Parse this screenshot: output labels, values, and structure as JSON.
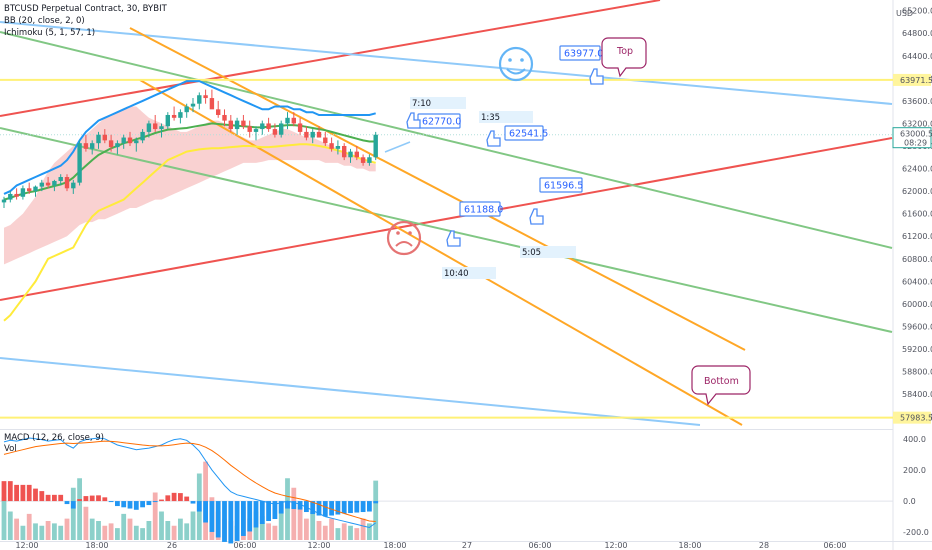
{
  "header": {
    "symbol_line": "BTCUSD Perpetual Contract, 30, BYBIT",
    "indicators": [
      "BB (20, close, 2, 0)",
      "Ichimoku (5, 1, 57, 1)"
    ],
    "sub_indicators": [
      "MACD (12, 26, close, 9)",
      "Vol"
    ]
  },
  "price_axis": {
    "currency": "USD",
    "current_price": "63000.5",
    "countdown": "08:29",
    "labels": [
      "65200.0",
      "64800.0",
      "64400.0",
      "64000.0",
      "63600.0",
      "63200.0",
      "62800.0",
      "62400.0",
      "62000.0",
      "61600.0",
      "61200.0",
      "60800.0",
      "60400.0",
      "60000.0",
      "59600.0",
      "59200.0",
      "58800.0",
      "58400.0",
      "58000.0"
    ],
    "level_labels": [
      "63971.5",
      "57983.5"
    ]
  },
  "macd_axis": {
    "labels": [
      "400.0",
      "200.0",
      "0.0",
      "-200.0"
    ]
  },
  "time_axis": {
    "labels": [
      "12:00",
      "18:00",
      "26",
      "06:00",
      "12:00",
      "18:00",
      "27",
      "06:00",
      "12:00",
      "18:00",
      "28",
      "06:00"
    ]
  },
  "annotations": {
    "price_notes": [
      "62770.0",
      "62541.5",
      "61596.5",
      "61188.0",
      "63977.0"
    ],
    "time_notes": [
      "7:10",
      "1:35",
      "5:05",
      "10:40"
    ],
    "callouts": [
      "Top",
      "Bottom"
    ],
    "smiley_happy": "smiley-happy-icon",
    "smiley_sad": "smiley-sad-icon"
  },
  "colors": {
    "up": "#26a69a",
    "down": "#ef5350",
    "bb": "#2196f3",
    "base": "#4caf50",
    "conv": "#ffeb3b",
    "cloud": "#f8c5c5",
    "level": "#fff176",
    "note": "#2962ff",
    "callout": "#9c2466",
    "orange": "#ffa726",
    "green_line": "#81c784",
    "red_line": "#ef5350",
    "blue_line": "#90caf9"
  },
  "chart_data": {
    "type": "candlestick",
    "title": "BTCUSD Perpetual Contract, 30, BYBIT",
    "ylim": [
      57800,
      65300
    ],
    "horizontal_levels": [
      63971.5,
      57983.5
    ],
    "price_notes": [
      62770.0,
      62541.5,
      61596.5,
      61188.0,
      63977.0
    ],
    "candles": [
      [
        61800,
        61900,
        61700,
        61850
      ],
      [
        61850,
        62000,
        61800,
        61950
      ],
      [
        61950,
        62050,
        61850,
        61900
      ],
      [
        61900,
        62100,
        61850,
        62050
      ],
      [
        62050,
        62150,
        61950,
        62000
      ],
      [
        62000,
        62100,
        61900,
        62080
      ],
      [
        62080,
        62200,
        62000,
        62150
      ],
      [
        62150,
        62250,
        62050,
        62100
      ],
      [
        62100,
        62200,
        62000,
        62180
      ],
      [
        62180,
        62300,
        62100,
        62250
      ],
      [
        62250,
        62300,
        62000,
        62050
      ],
      [
        62050,
        62200,
        61950,
        62150
      ],
      [
        62150,
        62900,
        62100,
        62850
      ],
      [
        62850,
        63000,
        62700,
        62750
      ],
      [
        62750,
        62900,
        62650,
        62850
      ],
      [
        62850,
        63050,
        62750,
        63000
      ],
      [
        63000,
        63100,
        62850,
        62900
      ],
      [
        62900,
        63000,
        62700,
        62780
      ],
      [
        62780,
        62900,
        62650,
        62850
      ],
      [
        62850,
        63000,
        62750,
        62950
      ],
      [
        62950,
        63050,
        62800,
        62850
      ],
      [
        62850,
        62950,
        62700,
        62900
      ],
      [
        62900,
        63100,
        62850,
        63050
      ],
      [
        63050,
        63250,
        62950,
        63200
      ],
      [
        63200,
        63350,
        63050,
        63100
      ],
      [
        63100,
        63200,
        62950,
        63150
      ],
      [
        63150,
        63400,
        63100,
        63350
      ],
      [
        63350,
        63500,
        63250,
        63300
      ],
      [
        63300,
        63450,
        63200,
        63400
      ],
      [
        63400,
        63550,
        63300,
        63500
      ],
      [
        63500,
        63650,
        63400,
        63550
      ],
      [
        63550,
        63750,
        63450,
        63700
      ],
      [
        63700,
        63800,
        63550,
        63650
      ],
      [
        63650,
        63800,
        63500,
        63450
      ],
      [
        63450,
        63600,
        63300,
        63350
      ],
      [
        63350,
        63450,
        63150,
        63250
      ],
      [
        63250,
        63350,
        63050,
        63100
      ],
      [
        63100,
        63300,
        63000,
        63250
      ],
      [
        63250,
        63350,
        63100,
        63150
      ],
      [
        63150,
        63250,
        62950,
        63050
      ],
      [
        63050,
        63150,
        62900,
        63100
      ],
      [
        63100,
        63250,
        63000,
        63200
      ],
      [
        63200,
        63300,
        63050,
        63100
      ],
      [
        63100,
        63200,
        62950,
        63000
      ],
      [
        63000,
        63250,
        62950,
        63200
      ],
      [
        63200,
        63400,
        63100,
        63300
      ],
      [
        63300,
        63400,
        63150,
        63200
      ],
      [
        63200,
        63300,
        63000,
        63050
      ],
      [
        63050,
        63150,
        62900,
        62950
      ],
      [
        62950,
        63100,
        62850,
        63050
      ],
      [
        63050,
        63150,
        62950,
        62950
      ],
      [
        62950,
        63050,
        62800,
        62850
      ],
      [
        62850,
        62950,
        62700,
        62750
      ],
      [
        62750,
        62900,
        62650,
        62800
      ],
      [
        62800,
        62850,
        62550,
        62600
      ],
      [
        62600,
        62750,
        62500,
        62700
      ],
      [
        62700,
        62800,
        62550,
        62600
      ],
      [
        62600,
        62650,
        62450,
        62500
      ],
      [
        62500,
        62650,
        62450,
        62600
      ],
      [
        62600,
        63050,
        62550,
        63000
      ]
    ],
    "macd_range": [
      -250,
      450
    ],
    "macd_line": [
      380,
      390,
      385,
      395,
      405,
      400,
      395,
      385,
      390,
      395,
      360,
      340,
      380,
      395,
      400,
      405,
      400,
      380,
      360,
      350,
      340,
      330,
      335,
      340,
      350,
      360,
      380,
      395,
      400,
      390,
      360,
      320,
      260,
      200,
      150,
      100,
      60,
      40,
      30,
      20,
      10,
      0,
      -10,
      -20,
      -10,
      0,
      -10,
      -20,
      -40,
      -60,
      -80,
      -100,
      -110,
      -120,
      -130,
      -140,
      -150,
      -160,
      -170,
      -140
    ],
    "signal_line": [
      300,
      310,
      320,
      330,
      340,
      350,
      355,
      360,
      365,
      370,
      372,
      370,
      372,
      375,
      378,
      382,
      385,
      383,
      380,
      375,
      370,
      365,
      360,
      356,
      354,
      354,
      357,
      362,
      368,
      372,
      370,
      362,
      346,
      324,
      296,
      264,
      230,
      200,
      170,
      142,
      116,
      92,
      70,
      52,
      40,
      30,
      22,
      14,
      4,
      -8,
      -22,
      -38,
      -52,
      -66,
      -80,
      -92,
      -104,
      -116,
      -128,
      -131
    ],
    "volume": [
      180,
      120,
      90,
      60,
      110,
      70,
      60,
      80,
      70,
      60,
      90,
      220,
      260,
      140,
      90,
      80,
      60,
      70,
      50,
      110,
      90,
      60,
      50,
      80,
      200,
      120,
      80,
      60,
      90,
      70,
      120,
      280,
      330,
      180,
      120,
      90,
      80,
      60,
      140,
      90,
      120,
      100,
      70,
      60,
      150,
      260,
      220,
      140,
      90,
      120,
      80,
      60,
      90,
      50,
      70,
      60,
      50,
      90,
      70,
      250
    ]
  }
}
